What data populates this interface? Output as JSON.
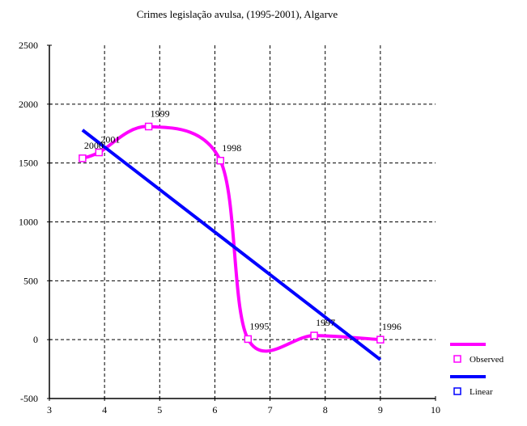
{
  "chart_data": {
    "type": "line",
    "title": "Crimes legislação avulsa, (1995-2001), Algarve",
    "xlabel": "",
    "ylabel": "",
    "xlim": [
      3,
      10
    ],
    "ylim": [
      -500,
      2500
    ],
    "x_ticks": [
      "3",
      "4",
      "5",
      "6",
      "7",
      "8",
      "9",
      "10"
    ],
    "y_ticks": [
      "2500",
      "2000",
      "1500",
      "1000",
      "500",
      "0",
      "-500"
    ],
    "grid": true,
    "legend_position": "right",
    "series": [
      {
        "name": "Observed",
        "color": "#ff00ff",
        "style": "smooth-line-with-square-markers",
        "points": [
          {
            "x": 3.6,
            "y": 1540,
            "label": "2000"
          },
          {
            "x": 3.9,
            "y": 1590,
            "label": "2001"
          },
          {
            "x": 4.8,
            "y": 1810,
            "label": "1999"
          },
          {
            "x": 6.1,
            "y": 1520,
            "label": "1998"
          },
          {
            "x": 6.6,
            "y": 5,
            "label": "1995"
          },
          {
            "x": 7.8,
            "y": 35,
            "label": "1997"
          },
          {
            "x": 9.0,
            "y": 0,
            "label": "1996"
          }
        ]
      },
      {
        "name": "Linear",
        "color": "#0000ff",
        "style": "line",
        "x": [
          3.6,
          9.0
        ],
        "y": [
          1780,
          -170
        ]
      }
    ]
  }
}
